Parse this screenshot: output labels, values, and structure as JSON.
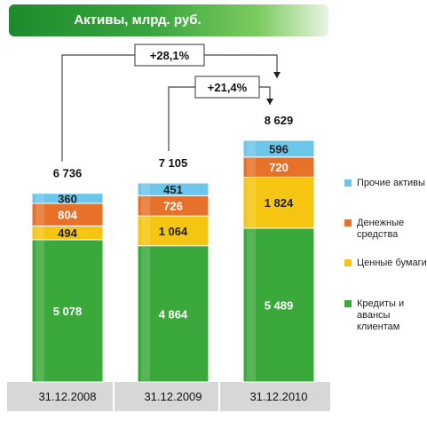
{
  "chart_data": {
    "type": "bar",
    "stacked": true,
    "title": "Активы, млрд. руб.",
    "categories": [
      "31.12.2008",
      "31.12.2009",
      "31.12.2010"
    ],
    "value_labels": {
      "loans": [
        "5 078",
        "4 864",
        "5 489"
      ],
      "securities": [
        "494",
        "1 064",
        "1 824"
      ],
      "cash": [
        "804",
        "726",
        "720"
      ],
      "other": [
        "360",
        "451",
        "596"
      ]
    },
    "series": [
      {
        "key": "loans",
        "name": "Кредиты и авансы клиентам",
        "values": [
          5078,
          4864,
          5489
        ],
        "color": "#3aa83b"
      },
      {
        "key": "securities",
        "name": "Ценные бумаги",
        "values": [
          494,
          1064,
          1824
        ],
        "color": "#f6c511"
      },
      {
        "key": "cash",
        "name": "Денежные средства",
        "values": [
          804,
          726,
          720
        ],
        "color": "#e8712a"
      },
      {
        "key": "other",
        "name": "Прочие активы",
        "values": [
          360,
          451,
          596
        ],
        "color": "#6cc5ea"
      }
    ],
    "totals": [
      6736,
      7105,
      8629
    ],
    "total_labels": [
      "6 736",
      "7 105",
      "8 629"
    ],
    "growth_annotations": [
      {
        "from": "31.12.2008",
        "to": "31.12.2010",
        "label": "+28,1%"
      },
      {
        "from": "31.12.2009",
        "to": "31.12.2010",
        "label": "+21,4%"
      }
    ],
    "legend_position": "right",
    "grid": false
  }
}
